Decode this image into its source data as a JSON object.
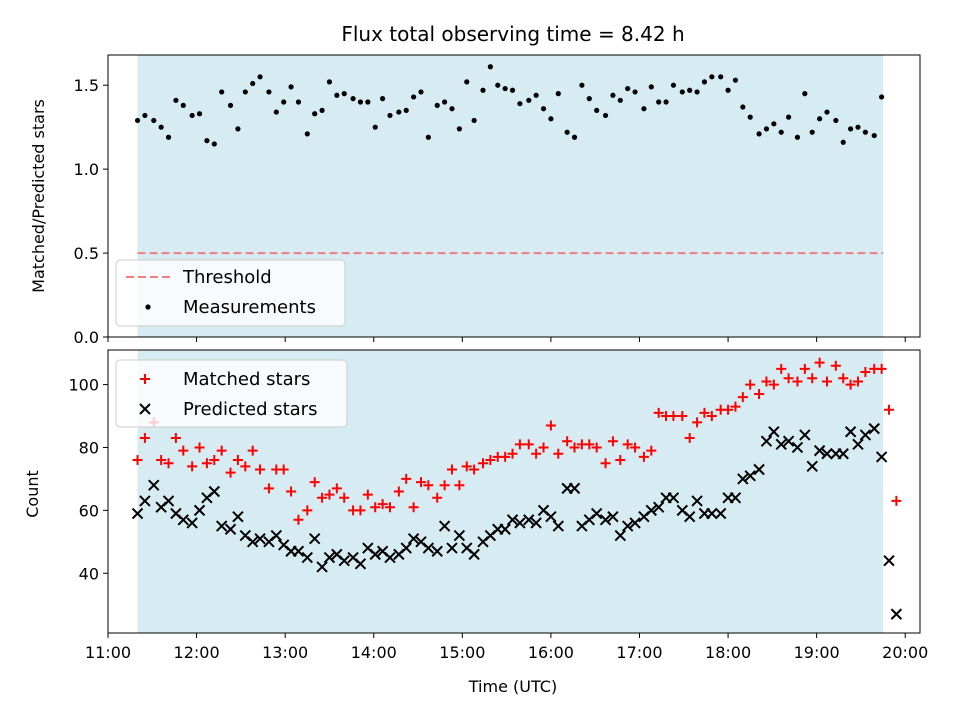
{
  "chart_data": [
    {
      "type": "scatter",
      "title": "Flux total observing time = 8.42 h",
      "ylabel": "Matched/Predicted stars",
      "xlabel": "",
      "xlim": [
        "11:00",
        "20:10"
      ],
      "ylim": [
        0,
        1.68
      ],
      "yticks": [
        0.0,
        0.5,
        1.0,
        1.5
      ],
      "ytick_labels": [
        "0.0",
        "0.5",
        "1.0",
        "1.5"
      ],
      "xticks": [
        "11:00",
        "12:00",
        "13:00",
        "14:00",
        "15:00",
        "16:00",
        "17:00",
        "18:00",
        "19:00",
        "20:00"
      ],
      "shaded_region": {
        "start": "11:20",
        "end": "19:45",
        "color": "#add8e6"
      },
      "grid": false,
      "legend_position": "lower-left",
      "threshold": {
        "name": "Threshold",
        "value": 0.5,
        "color": "#f08080",
        "style": "dashed"
      },
      "series": [
        {
          "name": "Measurements",
          "color": "#000000",
          "marker": "dot",
          "x": [
            "11:20",
            "11:25",
            "11:31",
            "11:36",
            "11:41",
            "11:46",
            "11:51",
            "11:57",
            "12:02",
            "12:07",
            "12:12",
            "12:17",
            "12:23",
            "12:28",
            "12:33",
            "12:38",
            "12:43",
            "12:49",
            "12:54",
            "12:59",
            "13:04",
            "13:09",
            "13:15",
            "13:20",
            "13:25",
            "13:30",
            "13:35",
            "13:40",
            "13:46",
            "13:51",
            "13:56",
            "14:01",
            "14:06",
            "14:11",
            "14:17",
            "14:22",
            "14:27",
            "14:32",
            "14:37",
            "14:43",
            "14:48",
            "14:53",
            "14:58",
            "15:03",
            "15:08",
            "15:14",
            "15:19",
            "15:24",
            "15:29",
            "15:34",
            "15:39",
            "15:45",
            "15:50",
            "15:55",
            "16:00",
            "16:05",
            "16:11",
            "16:16",
            "16:21",
            "16:26",
            "16:31",
            "16:37",
            "16:42",
            "16:47",
            "16:52",
            "16:57",
            "17:03",
            "17:08",
            "17:13",
            "17:18",
            "17:23",
            "17:29",
            "17:34",
            "17:39",
            "17:44",
            "17:49",
            "17:55",
            "18:00",
            "18:05",
            "18:10",
            "18:15",
            "18:21",
            "18:26",
            "18:31",
            "18:36",
            "18:41",
            "18:47",
            "18:52",
            "18:57",
            "19:02",
            "19:07",
            "19:13",
            "19:18",
            "19:23",
            "19:28",
            "19:33",
            "19:39",
            "19:44"
          ],
          "y": [
            1.29,
            1.32,
            1.29,
            1.25,
            1.19,
            1.41,
            1.38,
            1.32,
            1.33,
            1.17,
            1.15,
            1.46,
            1.38,
            1.24,
            1.46,
            1.51,
            1.55,
            1.46,
            1.34,
            1.4,
            1.49,
            1.4,
            1.21,
            1.33,
            1.35,
            1.52,
            1.44,
            1.45,
            1.42,
            1.4,
            1.4,
            1.25,
            1.42,
            1.32,
            1.34,
            1.35,
            1.43,
            1.46,
            1.19,
            1.38,
            1.4,
            1.36,
            1.24,
            1.52,
            1.29,
            1.47,
            1.61,
            1.5,
            1.48,
            1.47,
            1.39,
            1.41,
            1.44,
            1.36,
            1.3,
            1.45,
            1.22,
            1.19,
            1.5,
            1.42,
            1.35,
            1.32,
            1.44,
            1.41,
            1.48,
            1.46,
            1.36,
            1.49,
            1.4,
            1.4,
            1.5,
            1.46,
            1.47,
            1.46,
            1.52,
            1.55,
            1.55,
            1.47,
            1.53,
            1.37,
            1.31,
            1.21,
            1.24,
            1.27,
            1.22,
            1.31,
            1.19,
            1.45,
            1.22,
            1.3,
            1.34,
            1.29,
            1.16,
            1.24,
            1.25,
            1.22,
            1.2,
            1.43
          ]
        }
      ]
    },
    {
      "type": "scatter",
      "title": "",
      "xlabel": "Time (UTC)",
      "ylabel": "Count",
      "xlim": [
        "11:00",
        "20:10"
      ],
      "ylim": [
        21,
        111
      ],
      "yticks": [
        40,
        60,
        80,
        100
      ],
      "xticks": [
        "11:00",
        "12:00",
        "13:00",
        "14:00",
        "15:00",
        "16:00",
        "17:00",
        "18:00",
        "19:00",
        "20:00"
      ],
      "shaded_region": {
        "start": "11:20",
        "end": "19:45",
        "color": "#add8e6"
      },
      "grid": false,
      "legend_position": "upper-left",
      "series": [
        {
          "name": "Matched stars",
          "color": "#ff0000",
          "marker": "plus",
          "x": [
            "11:20",
            "11:25",
            "11:31",
            "11:36",
            "11:41",
            "11:46",
            "11:51",
            "11:57",
            "12:02",
            "12:07",
            "12:12",
            "12:17",
            "12:23",
            "12:28",
            "12:33",
            "12:38",
            "12:43",
            "12:49",
            "12:54",
            "12:59",
            "13:04",
            "13:09",
            "13:15",
            "13:20",
            "13:25",
            "13:30",
            "13:35",
            "13:40",
            "13:46",
            "13:51",
            "13:56",
            "14:01",
            "14:06",
            "14:11",
            "14:17",
            "14:22",
            "14:27",
            "14:32",
            "14:37",
            "14:43",
            "14:48",
            "14:53",
            "14:58",
            "15:03",
            "15:08",
            "15:14",
            "15:19",
            "15:24",
            "15:29",
            "15:34",
            "15:39",
            "15:45",
            "15:50",
            "15:55",
            "16:00",
            "16:05",
            "16:11",
            "16:16",
            "16:21",
            "16:26",
            "16:31",
            "16:37",
            "16:42",
            "16:47",
            "16:52",
            "16:57",
            "17:03",
            "17:08",
            "17:13",
            "17:18",
            "17:23",
            "17:29",
            "17:34",
            "17:39",
            "17:44",
            "17:49",
            "17:55",
            "18:00",
            "18:05",
            "18:10",
            "18:15",
            "18:21",
            "18:26",
            "18:31",
            "18:36",
            "18:41",
            "18:47",
            "18:52",
            "18:57",
            "19:02",
            "19:07",
            "19:13",
            "19:18",
            "19:23",
            "19:28",
            "19:33",
            "19:39",
            "19:44",
            "19:49",
            "19:54"
          ],
          "y": [
            76,
            83,
            88,
            76,
            75,
            83,
            79,
            74,
            80,
            75,
            76,
            79,
            72,
            76,
            74,
            79,
            73,
            67,
            73,
            73,
            66,
            57,
            60,
            69,
            64,
            65,
            67,
            64,
            60,
            60,
            65,
            61,
            62,
            61,
            66,
            70,
            61,
            69,
            68,
            64,
            68,
            73,
            68,
            74,
            73,
            75,
            76,
            77,
            77,
            78,
            81,
            81,
            78,
            80,
            87,
            78,
            82,
            80,
            81,
            81,
            80,
            75,
            82,
            76,
            81,
            80,
            77,
            79,
            91,
            90,
            90,
            90,
            83,
            88,
            91,
            90,
            92,
            92,
            93,
            96,
            100,
            97,
            101,
            100,
            105,
            102,
            101,
            105,
            102,
            107,
            101,
            106,
            102,
            100,
            101,
            104,
            105,
            105,
            92,
            63
          ]
        },
        {
          "name": "Predicted stars",
          "color": "#000000",
          "marker": "x",
          "x": [
            "11:20",
            "11:25",
            "11:31",
            "11:36",
            "11:41",
            "11:46",
            "11:51",
            "11:57",
            "12:02",
            "12:07",
            "12:12",
            "12:17",
            "12:23",
            "12:28",
            "12:33",
            "12:38",
            "12:43",
            "12:49",
            "12:54",
            "12:59",
            "13:04",
            "13:09",
            "13:15",
            "13:20",
            "13:25",
            "13:30",
            "13:35",
            "13:40",
            "13:46",
            "13:51",
            "13:56",
            "14:01",
            "14:06",
            "14:11",
            "14:17",
            "14:22",
            "14:27",
            "14:32",
            "14:37",
            "14:43",
            "14:48",
            "14:53",
            "14:58",
            "15:03",
            "15:08",
            "15:14",
            "15:19",
            "15:24",
            "15:29",
            "15:34",
            "15:39",
            "15:45",
            "15:50",
            "15:55",
            "16:00",
            "16:05",
            "16:11",
            "16:16",
            "16:21",
            "16:26",
            "16:31",
            "16:37",
            "16:42",
            "16:47",
            "16:52",
            "16:57",
            "17:03",
            "17:08",
            "17:13",
            "17:18",
            "17:23",
            "17:29",
            "17:34",
            "17:39",
            "17:44",
            "17:49",
            "17:55",
            "18:00",
            "18:05",
            "18:10",
            "18:15",
            "18:21",
            "18:26",
            "18:31",
            "18:36",
            "18:41",
            "18:47",
            "18:52",
            "18:57",
            "19:02",
            "19:07",
            "19:13",
            "19:18",
            "19:23",
            "19:28",
            "19:33",
            "19:39",
            "19:44",
            "19:49",
            "19:54"
          ],
          "y": [
            59,
            63,
            68,
            61,
            63,
            59,
            57,
            56,
            60,
            64,
            66,
            55,
            54,
            58,
            52,
            50,
            51,
            50,
            52,
            49,
            47,
            47,
            45,
            51,
            42,
            45,
            46,
            44,
            45,
            43,
            48,
            46,
            47,
            45,
            46,
            48,
            51,
            50,
            48,
            47,
            55,
            48,
            52,
            48,
            46,
            50,
            52,
            54,
            54,
            57,
            56,
            57,
            56,
            60,
            58,
            55,
            67,
            67,
            55,
            57,
            59,
            57,
            58,
            52,
            55,
            56,
            58,
            60,
            61,
            64,
            64,
            60,
            58,
            63,
            59,
            59,
            59,
            64,
            64,
            70,
            71,
            73,
            82,
            85,
            81,
            82,
            80,
            84,
            74,
            79,
            78,
            78,
            78,
            85,
            81,
            84,
            86,
            77,
            44,
            27
          ]
        }
      ]
    }
  ]
}
